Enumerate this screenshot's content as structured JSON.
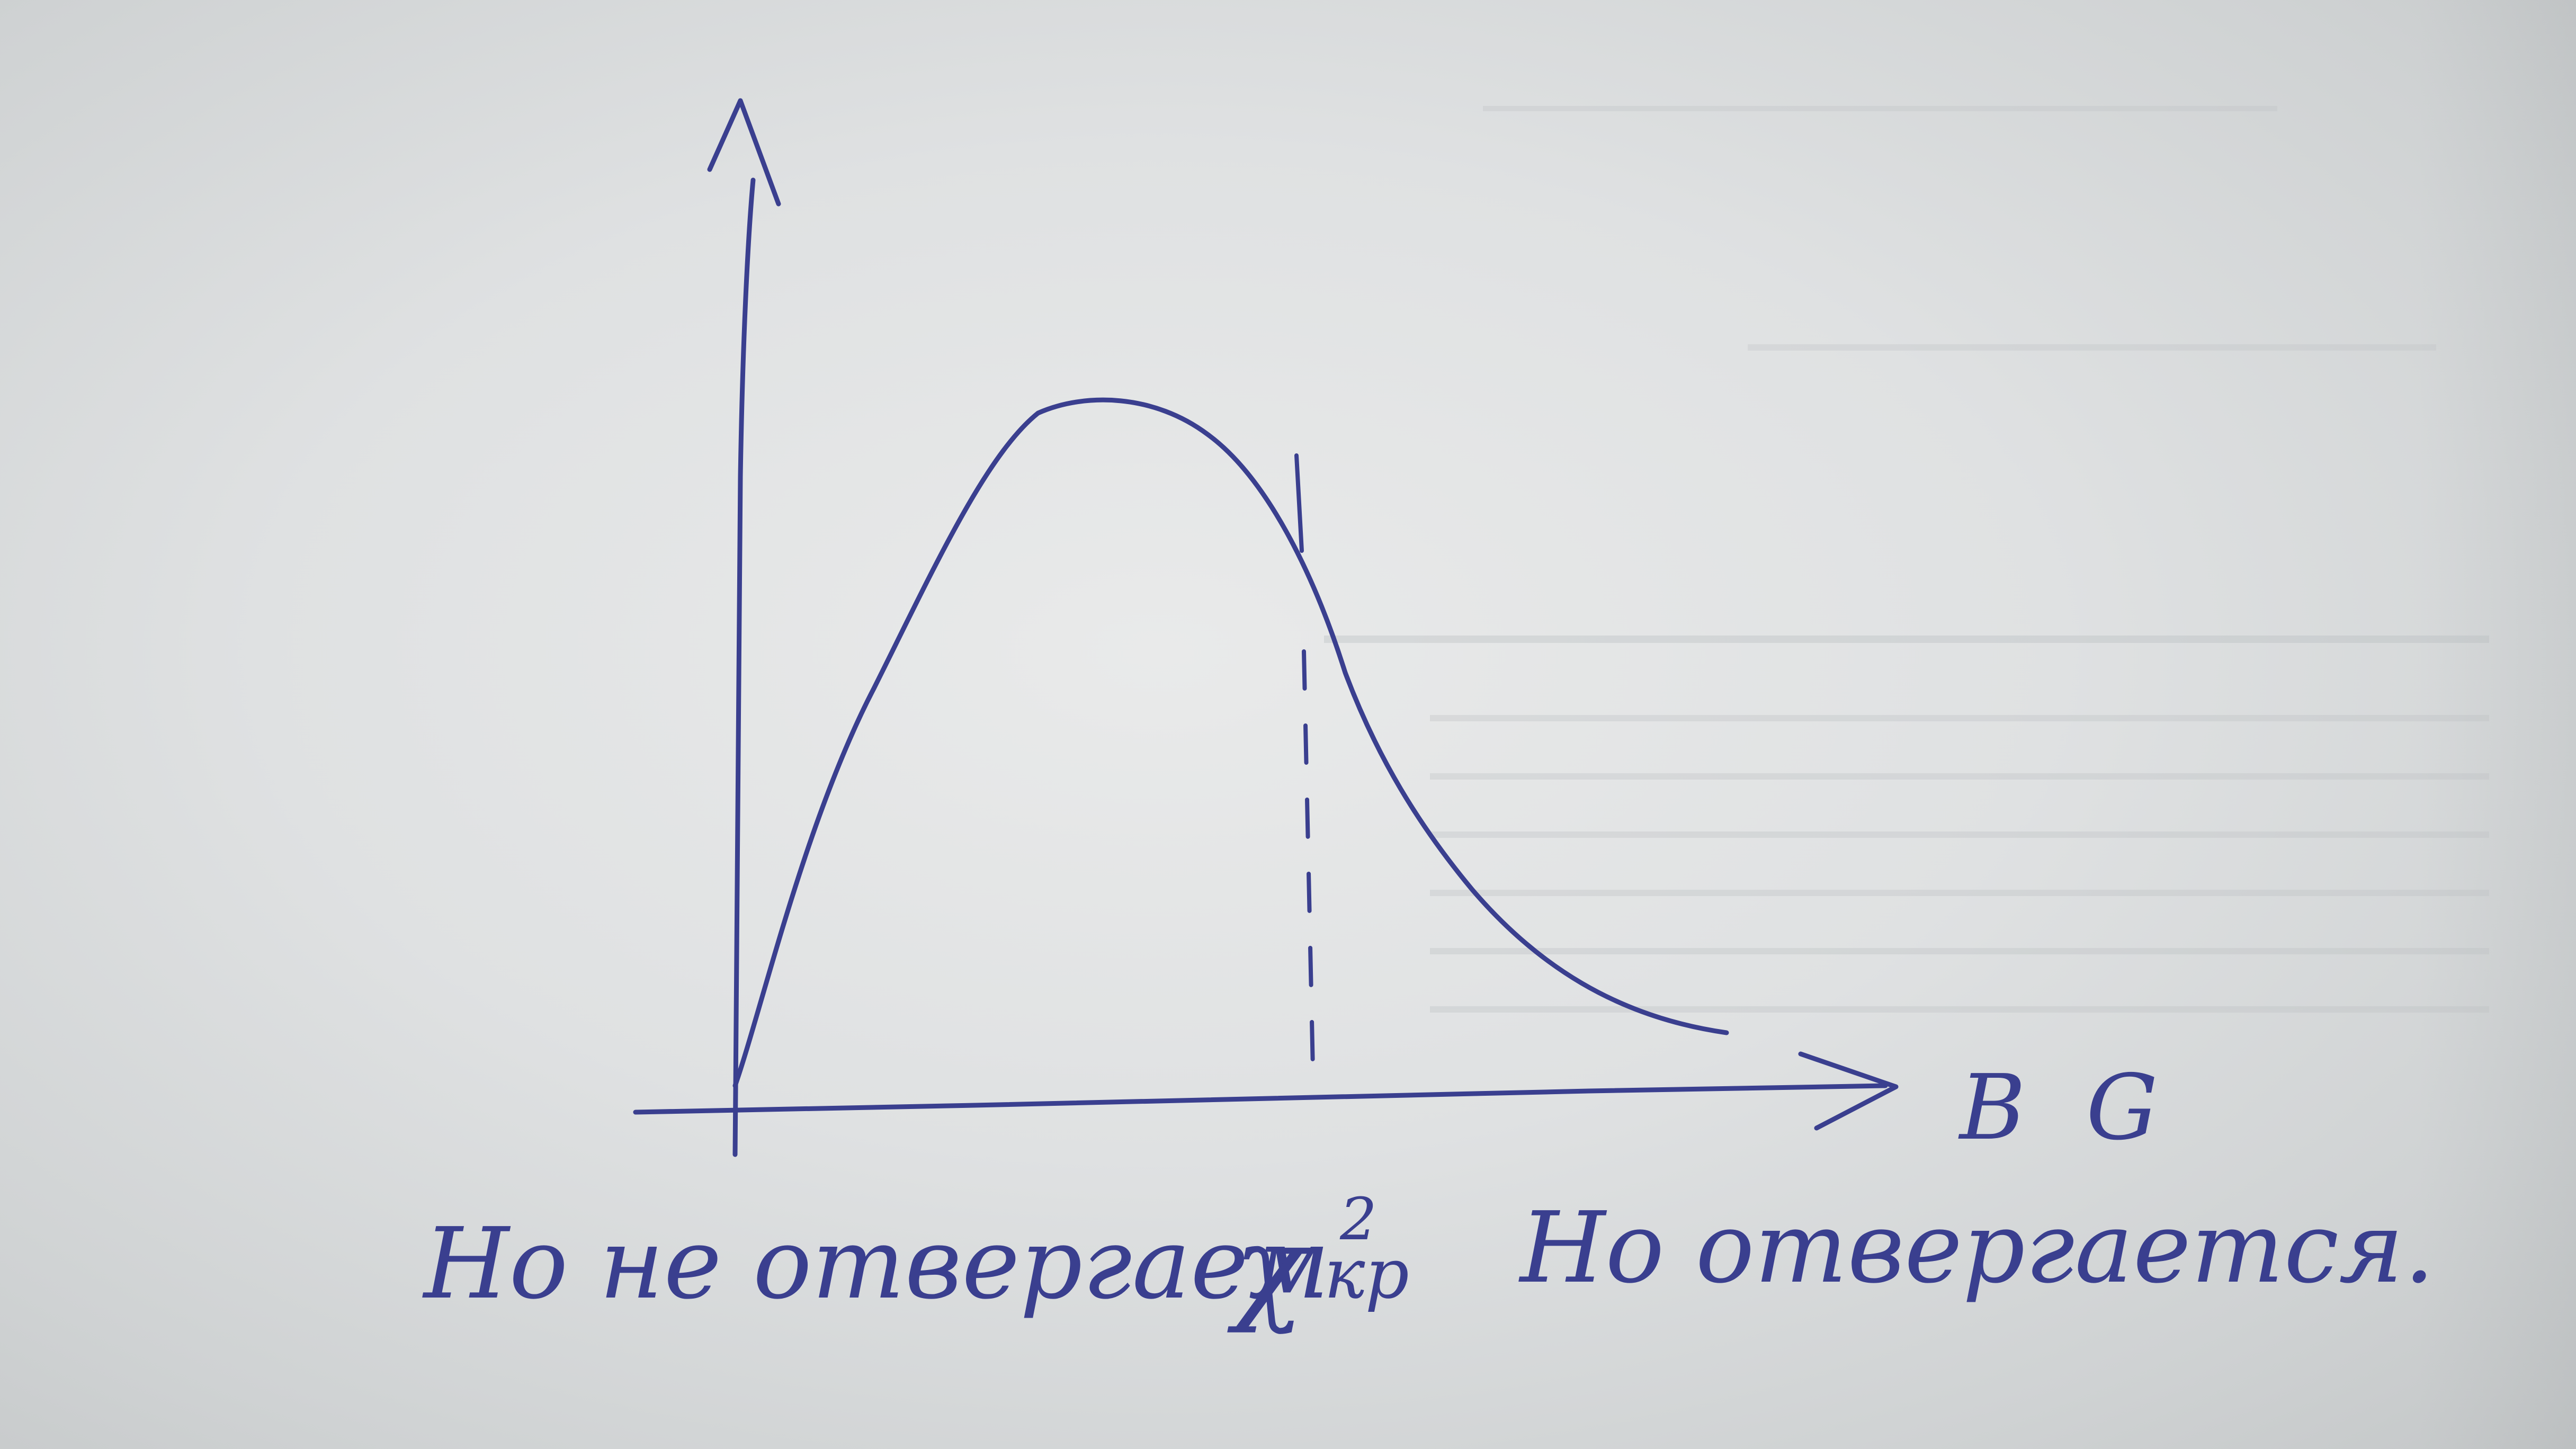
{
  "axis": {
    "x_label": "B G"
  },
  "caption": {
    "left": "Ho не отвергаем",
    "critical": "χ²",
    "critical_sup": "2",
    "critical_sub": "кр",
    "right": "Ho отвергается."
  },
  "colors": {
    "ink": "#3a3f8f",
    "paper": "#e2e4e5"
  }
}
